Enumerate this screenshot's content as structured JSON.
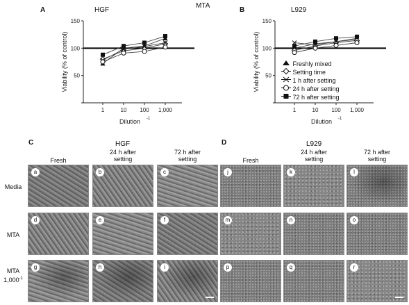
{
  "top_title": "MTA",
  "panel_a": {
    "label": "A",
    "title": "HGF"
  },
  "panel_b": {
    "label": "B",
    "title": "L929"
  },
  "panel_c": {
    "label": "C",
    "group": "HGF"
  },
  "panel_d": {
    "label": "D",
    "group": "L929"
  },
  "axes": {
    "ylabel": "Viability (% of control)",
    "xlabel": "Dilution",
    "xlabel_sup": "-1"
  },
  "legend": [
    {
      "label": "Freshly mixed",
      "marker": "filled-triangle"
    },
    {
      "label": "Setting time",
      "marker": "open-diamond"
    },
    {
      "label": "1 h after setting",
      "marker": "open-triangle-x"
    },
    {
      "label": "24 h after setting",
      "marker": "open-circle"
    },
    {
      "label": "72 h after setting",
      "marker": "filled-square"
    }
  ],
  "col_headers": {
    "c1": "Fresh",
    "c2a": "24 h after",
    "c2b": "setting",
    "c3a": "72 h after",
    "c3b": "setting"
  },
  "row_headers": {
    "r1": "Media",
    "r2": "MTA",
    "r3a": "MTA",
    "r3b": "1,000",
    "r3sup": "-1"
  },
  "tile_labels": [
    "a",
    "b",
    "c",
    "d",
    "e",
    "f",
    "g",
    "h",
    "i",
    "j",
    "k",
    "l",
    "m",
    "n",
    "o",
    "p",
    "q",
    "r"
  ],
  "chart_data": [
    {
      "type": "line",
      "title": "HGF",
      "xlabel": "Dilution-1",
      "ylabel": "Viability (% of control)",
      "x": [
        "1",
        "10",
        "100",
        "1,000"
      ],
      "yticks": [
        50,
        100,
        150
      ],
      "ylim": [
        0,
        150
      ],
      "reference_line": 100,
      "series": [
        {
          "name": "Freshly mixed",
          "values": [
            72,
            100,
            104,
            118
          ]
        },
        {
          "name": "Setting time",
          "values": [
            80,
            95,
            100,
            108
          ]
        },
        {
          "name": "1 h after setting",
          "values": [
            78,
            98,
            103,
            110
          ]
        },
        {
          "name": "24 h after setting",
          "values": [
            75,
            91,
            94,
            102
          ]
        },
        {
          "name": "72 h after setting",
          "values": [
            88,
            104,
            110,
            122
          ]
        }
      ]
    },
    {
      "type": "line",
      "title": "L929",
      "xlabel": "Dilution-1",
      "ylabel": "Viability (% of control)",
      "x": [
        "1",
        "10",
        "100",
        "1,000"
      ],
      "yticks": [
        50,
        100,
        150
      ],
      "ylim": [
        0,
        150
      ],
      "reference_line": 100,
      "series": [
        {
          "name": "Freshly mixed",
          "values": [
            100,
            108,
            112,
            116
          ]
        },
        {
          "name": "Setting time",
          "values": [
            96,
            104,
            110,
            114
          ]
        },
        {
          "name": "1 h after setting",
          "values": [
            110,
            106,
            112,
            118
          ]
        },
        {
          "name": "24 h after setting",
          "values": [
            92,
            100,
            105,
            110
          ]
        },
        {
          "name": "72 h after setting",
          "values": [
            104,
            112,
            118,
            121
          ]
        }
      ]
    }
  ]
}
